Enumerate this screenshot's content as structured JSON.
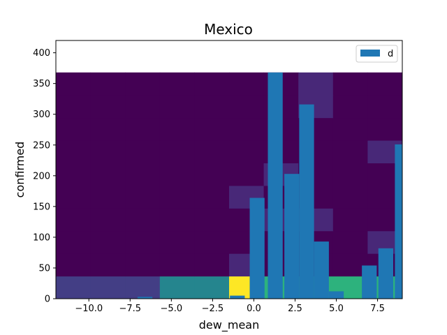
{
  "chart_data": {
    "type": "bar",
    "title": "Mexico",
    "xlabel": "dew_mean",
    "ylabel": "confirmed",
    "xlim": [
      -12,
      9
    ],
    "ylim": [
      0,
      420
    ],
    "xticks": [
      -10.0,
      -7.5,
      -5.0,
      -2.5,
      0.0,
      2.5,
      5.0,
      7.5
    ],
    "xtick_labels": [
      "−10.0",
      "−7.5",
      "−5.0",
      "−2.5",
      "0.0",
      "2.5",
      "5.0",
      "7.5"
    ],
    "yticks": [
      0,
      50,
      100,
      150,
      200,
      250,
      300,
      350,
      400
    ],
    "ytick_labels": [
      "0",
      "50",
      "100",
      "150",
      "200",
      "250",
      "300",
      "350",
      "400"
    ],
    "legend": {
      "placement": "top-right",
      "entries": [
        "d"
      ]
    },
    "bar_color": "#1f77b4",
    "bar_width": 0.9,
    "bars": [
      {
        "x": -6.6,
        "y": 3
      },
      {
        "x": -1.0,
        "y": 5
      },
      {
        "x": 0.2,
        "y": 164
      },
      {
        "x": 1.3,
        "y": 368
      },
      {
        "x": 2.3,
        "y": 203
      },
      {
        "x": 3.2,
        "y": 316
      },
      {
        "x": 4.1,
        "y": 93
      },
      {
        "x": 5.0,
        "y": 12
      },
      {
        "x": 7.0,
        "y": 54
      },
      {
        "x": 8.0,
        "y": 82
      },
      {
        "x": 9.0,
        "y": 251
      }
    ],
    "heatmap": {
      "x_edges": [
        -12,
        -9.9,
        -7.8,
        -5.7,
        -3.6,
        -1.5,
        0.6,
        2.7,
        4.8,
        6.9,
        9.0
      ],
      "y_edges": [
        0,
        36.8,
        73.6,
        110.4,
        147.2,
        184.0,
        220.8,
        257.6,
        294.4,
        331.2,
        368
      ],
      "colors": [
        [
          "#433e85",
          "#433e85",
          "#433e85",
          "#25858e",
          "#25858e",
          "#fde725",
          "#2db27d",
          "#2db27d",
          "#2db27d",
          "#2db27d"
        ],
        [
          "#440154",
          "#440154",
          "#440154",
          "#440154",
          "#440154",
          "#482878",
          "#440154",
          "#440154",
          "#440154",
          "#440154"
        ],
        [
          "#440154",
          "#440154",
          "#440154",
          "#440154",
          "#440154",
          "#440154",
          "#440154",
          "#440154",
          "#440154",
          "#482878"
        ],
        [
          "#440154",
          "#440154",
          "#440154",
          "#440154",
          "#440154",
          "#440154",
          "#482878",
          "#482878",
          "#440154",
          "#440154"
        ],
        [
          "#440154",
          "#440154",
          "#440154",
          "#440154",
          "#440154",
          "#482878",
          "#440154",
          "#440154",
          "#440154",
          "#440154"
        ],
        [
          "#440154",
          "#440154",
          "#440154",
          "#440154",
          "#440154",
          "#440154",
          "#482878",
          "#440154",
          "#440154",
          "#440154"
        ],
        [
          "#440154",
          "#440154",
          "#440154",
          "#440154",
          "#440154",
          "#440154",
          "#440154",
          "#440154",
          "#440154",
          "#482878"
        ],
        [
          "#440154",
          "#440154",
          "#440154",
          "#440154",
          "#440154",
          "#440154",
          "#440154",
          "#440154",
          "#440154",
          "#440154"
        ],
        [
          "#440154",
          "#440154",
          "#440154",
          "#440154",
          "#440154",
          "#440154",
          "#440154",
          "#482878",
          "#440154",
          "#440154"
        ],
        [
          "#440154",
          "#440154",
          "#440154",
          "#440154",
          "#440154",
          "#440154",
          "#440154",
          "#482878",
          "#440154",
          "#440154"
        ]
      ]
    }
  }
}
